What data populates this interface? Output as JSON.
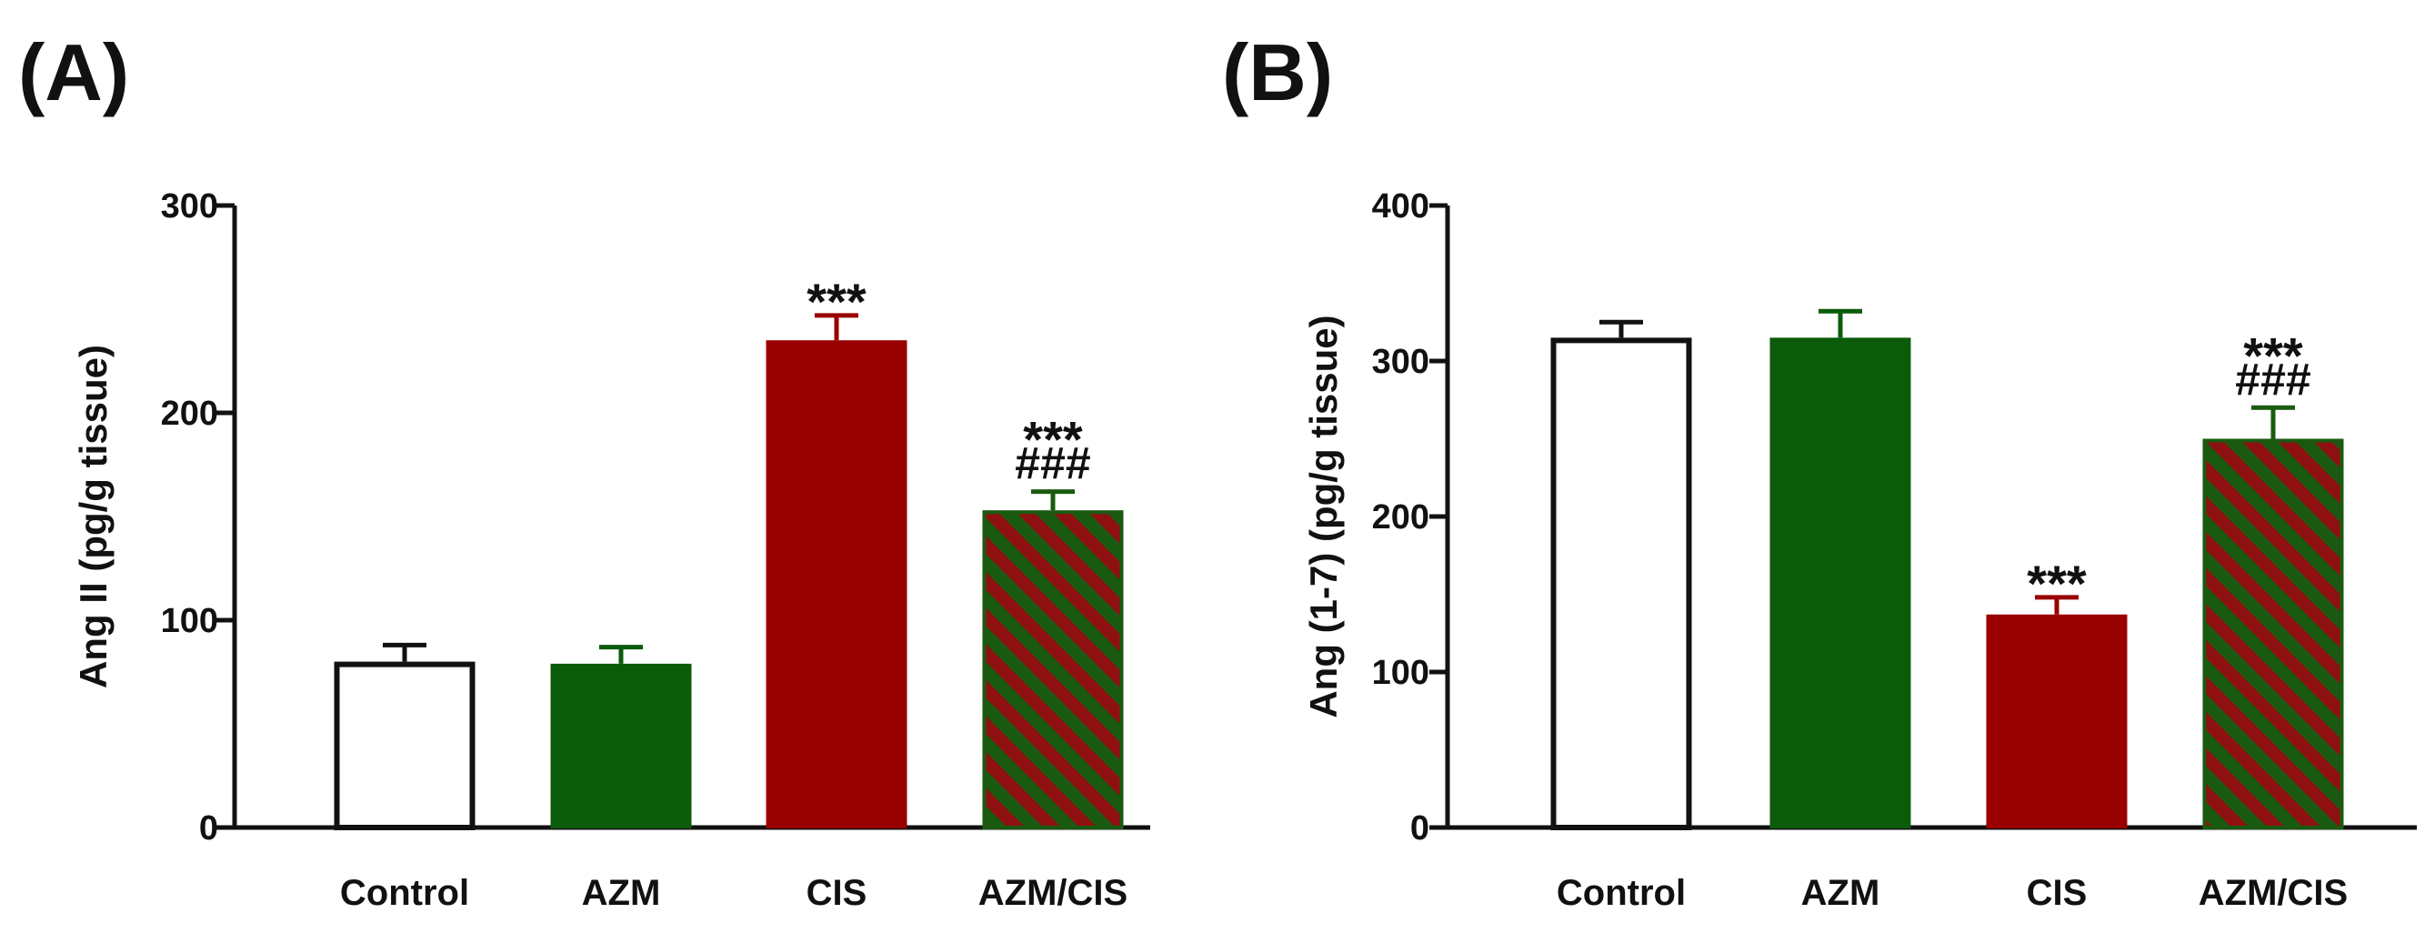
{
  "chart_data": [
    {
      "type": "bar",
      "panel_label": "(A)",
      "categories": [
        "Control",
        "AZM",
        "CIS",
        "AZM/CIS"
      ],
      "values": [
        80,
        79,
        235,
        153
      ],
      "errors": [
        8,
        8,
        12,
        9
      ],
      "ylabel": "Ang II (pg/g tissue)",
      "ylim": [
        0,
        300
      ],
      "yticks": [
        0,
        100,
        200,
        300
      ],
      "significance": [
        [],
        [],
        [
          "***"
        ],
        [
          "***",
          "###"
        ]
      ],
      "styles": [
        "white",
        "green",
        "red",
        "hatched"
      ],
      "grid": false
    },
    {
      "type": "bar",
      "panel_label": "(B)",
      "categories": [
        "Control",
        "AZM",
        "CIS",
        "AZM/CIS"
      ],
      "values": [
        315,
        315,
        137,
        250
      ],
      "errors": [
        10,
        17,
        11,
        20
      ],
      "ylabel": "Ang (1-7) (pg/g tissue)",
      "ylim": [
        0,
        400
      ],
      "yticks": [
        0,
        100,
        200,
        300,
        400
      ],
      "significance": [
        [],
        [],
        [
          "***"
        ],
        [
          "***",
          "###"
        ]
      ],
      "styles": [
        "white",
        "green",
        "red",
        "hatched"
      ],
      "grid": false
    }
  ],
  "colors": {
    "axis": "#111111",
    "white_fill": "#ffffff",
    "green": "#0b5b0b",
    "green_error": "#0b5b0b",
    "red": "#990000",
    "hatch_green": "#1a5a10",
    "hatch_red": "#8f1010"
  }
}
